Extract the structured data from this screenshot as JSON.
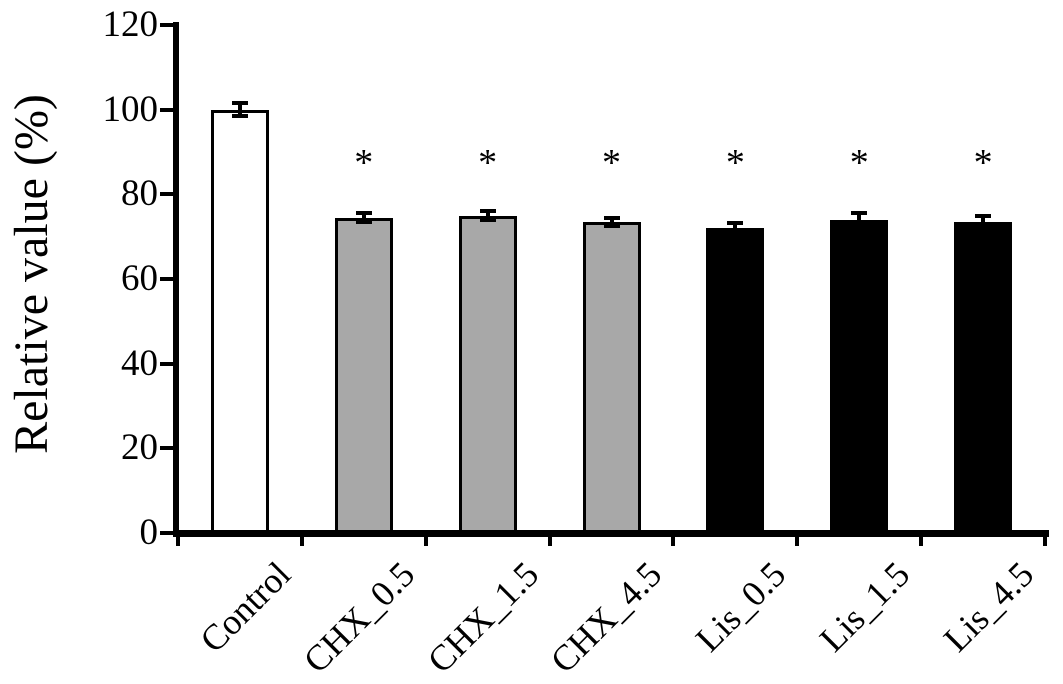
{
  "chart_data": {
    "type": "bar",
    "title": "",
    "xlabel": "",
    "ylabel": "Relative value (%)",
    "ylim": [
      0,
      120
    ],
    "yticks": [
      0,
      20,
      40,
      60,
      80,
      100,
      120
    ],
    "grid": false,
    "legend": "none",
    "categories": [
      "Control",
      "CHX_0.5",
      "CHX_1.5",
      "CHX_4.5",
      "Lis_0.5",
      "Lis_1.5",
      "Lis_4.5"
    ],
    "values": [
      100,
      74.5,
      75,
      73.5,
      72,
      74,
      73.5
    ],
    "errors": [
      1.5,
      1,
      1,
      1,
      1.2,
      1.5,
      1.5
    ],
    "significance": [
      "",
      "*",
      "*",
      "*",
      "*",
      "*",
      "*"
    ],
    "bar_colors": [
      "#ffffff",
      "#a8a8a8",
      "#a8a8a8",
      "#a8a8a8",
      "#000000",
      "#000000",
      "#000000"
    ],
    "bar_edge_color": "#000000"
  }
}
